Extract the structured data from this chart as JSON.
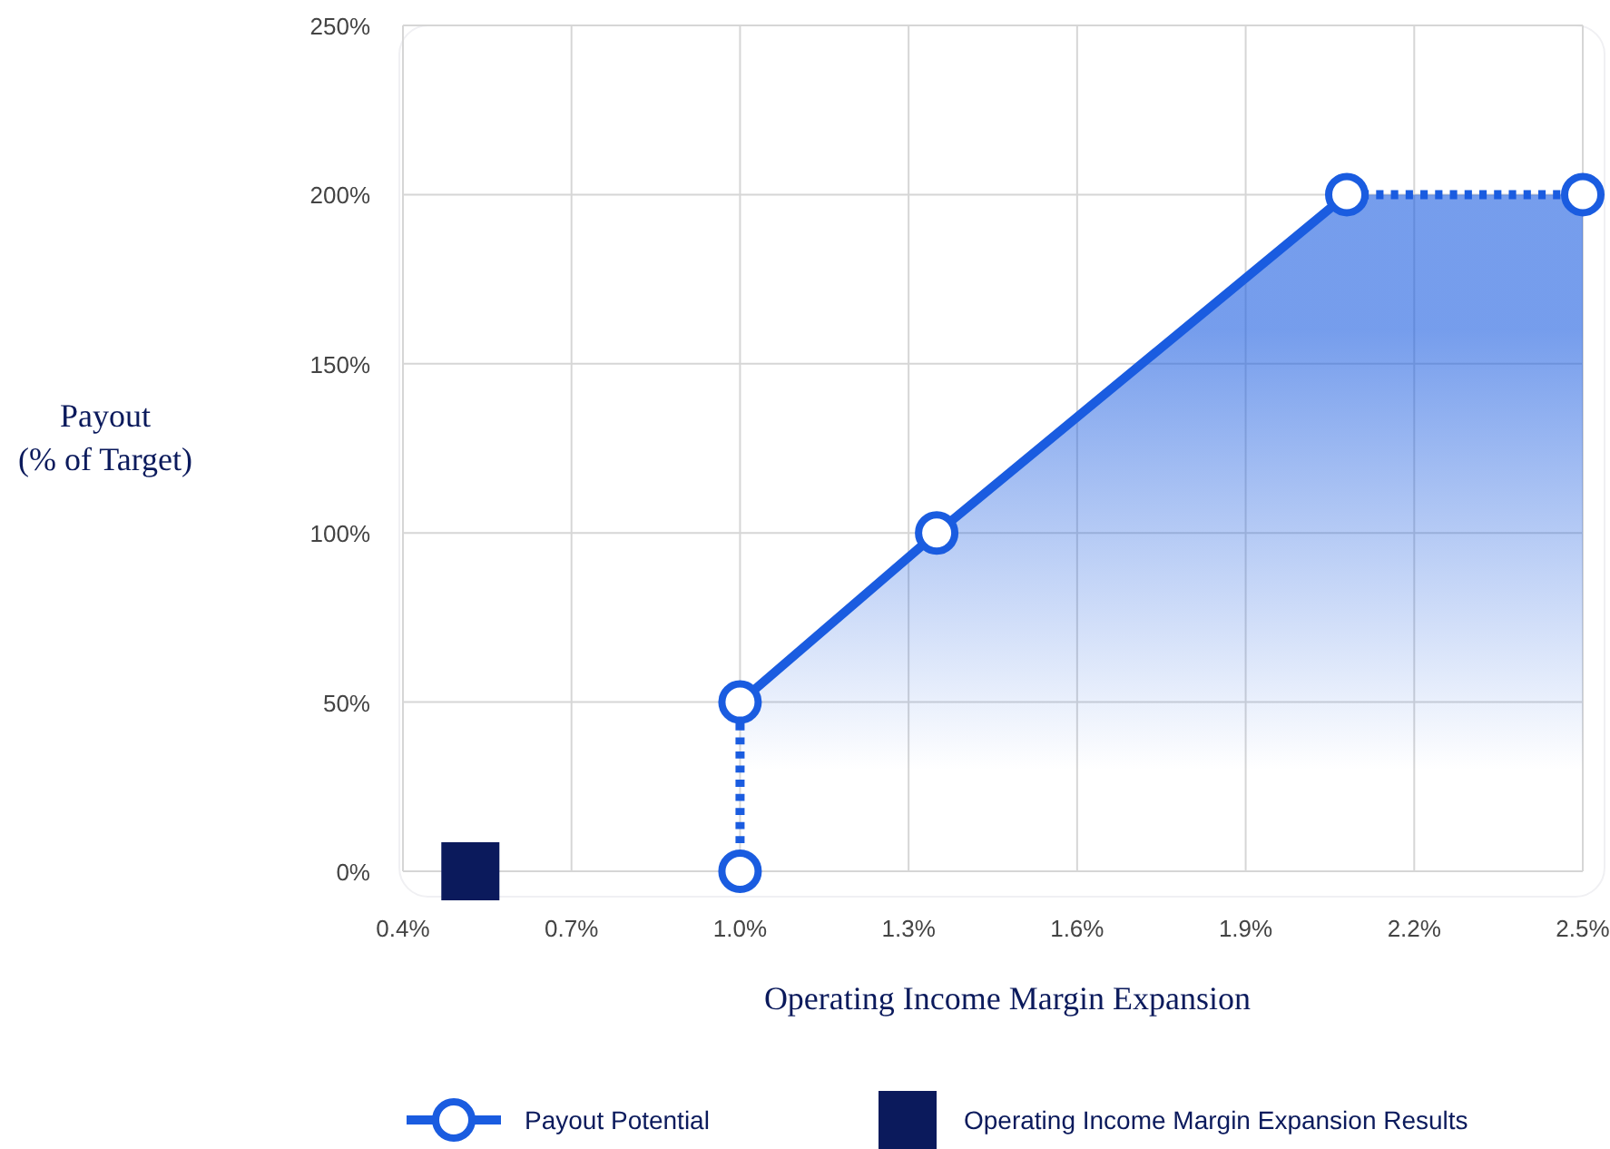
{
  "chart_data": {
    "type": "area",
    "xlabel": "Operating Income Margin Expansion",
    "ylabel": "Payout\n(% of Target)",
    "xlim": [
      0.4,
      2.5
    ],
    "ylim": [
      0,
      250
    ],
    "xticks": [
      {
        "value": 0.4,
        "label": "0.4%"
      },
      {
        "value": 0.7,
        "label": "0.7%"
      },
      {
        "value": 1.0,
        "label": "1.0%"
      },
      {
        "value": 1.3,
        "label": "1.3%"
      },
      {
        "value": 1.6,
        "label": "1.6%"
      },
      {
        "value": 1.9,
        "label": "1.9%"
      },
      {
        "value": 2.2,
        "label": "2.2%"
      },
      {
        "value": 2.5,
        "label": "2.5%"
      }
    ],
    "yticks": [
      {
        "value": 0,
        "label": "0%"
      },
      {
        "value": 50,
        "label": "50%"
      },
      {
        "value": 100,
        "label": "100%"
      },
      {
        "value": 150,
        "label": "150%"
      },
      {
        "value": 200,
        "label": "200%"
      },
      {
        "value": 250,
        "label": "250%"
      }
    ],
    "grid": true,
    "legend": "bottom",
    "series": [
      {
        "name": "Payout Potential",
        "color": "#1a5ce0",
        "x": [
          1.0,
          1.0,
          1.35,
          2.08,
          2.5
        ],
        "values": [
          0,
          50,
          100,
          200,
          200
        ],
        "marker": "circle"
      },
      {
        "type": "scatter",
        "name": "Operating Income Margin Expansion Results",
        "color": "#0b1a5c",
        "x": [
          0.52
        ],
        "values": [
          0
        ],
        "marker": "square"
      }
    ]
  }
}
